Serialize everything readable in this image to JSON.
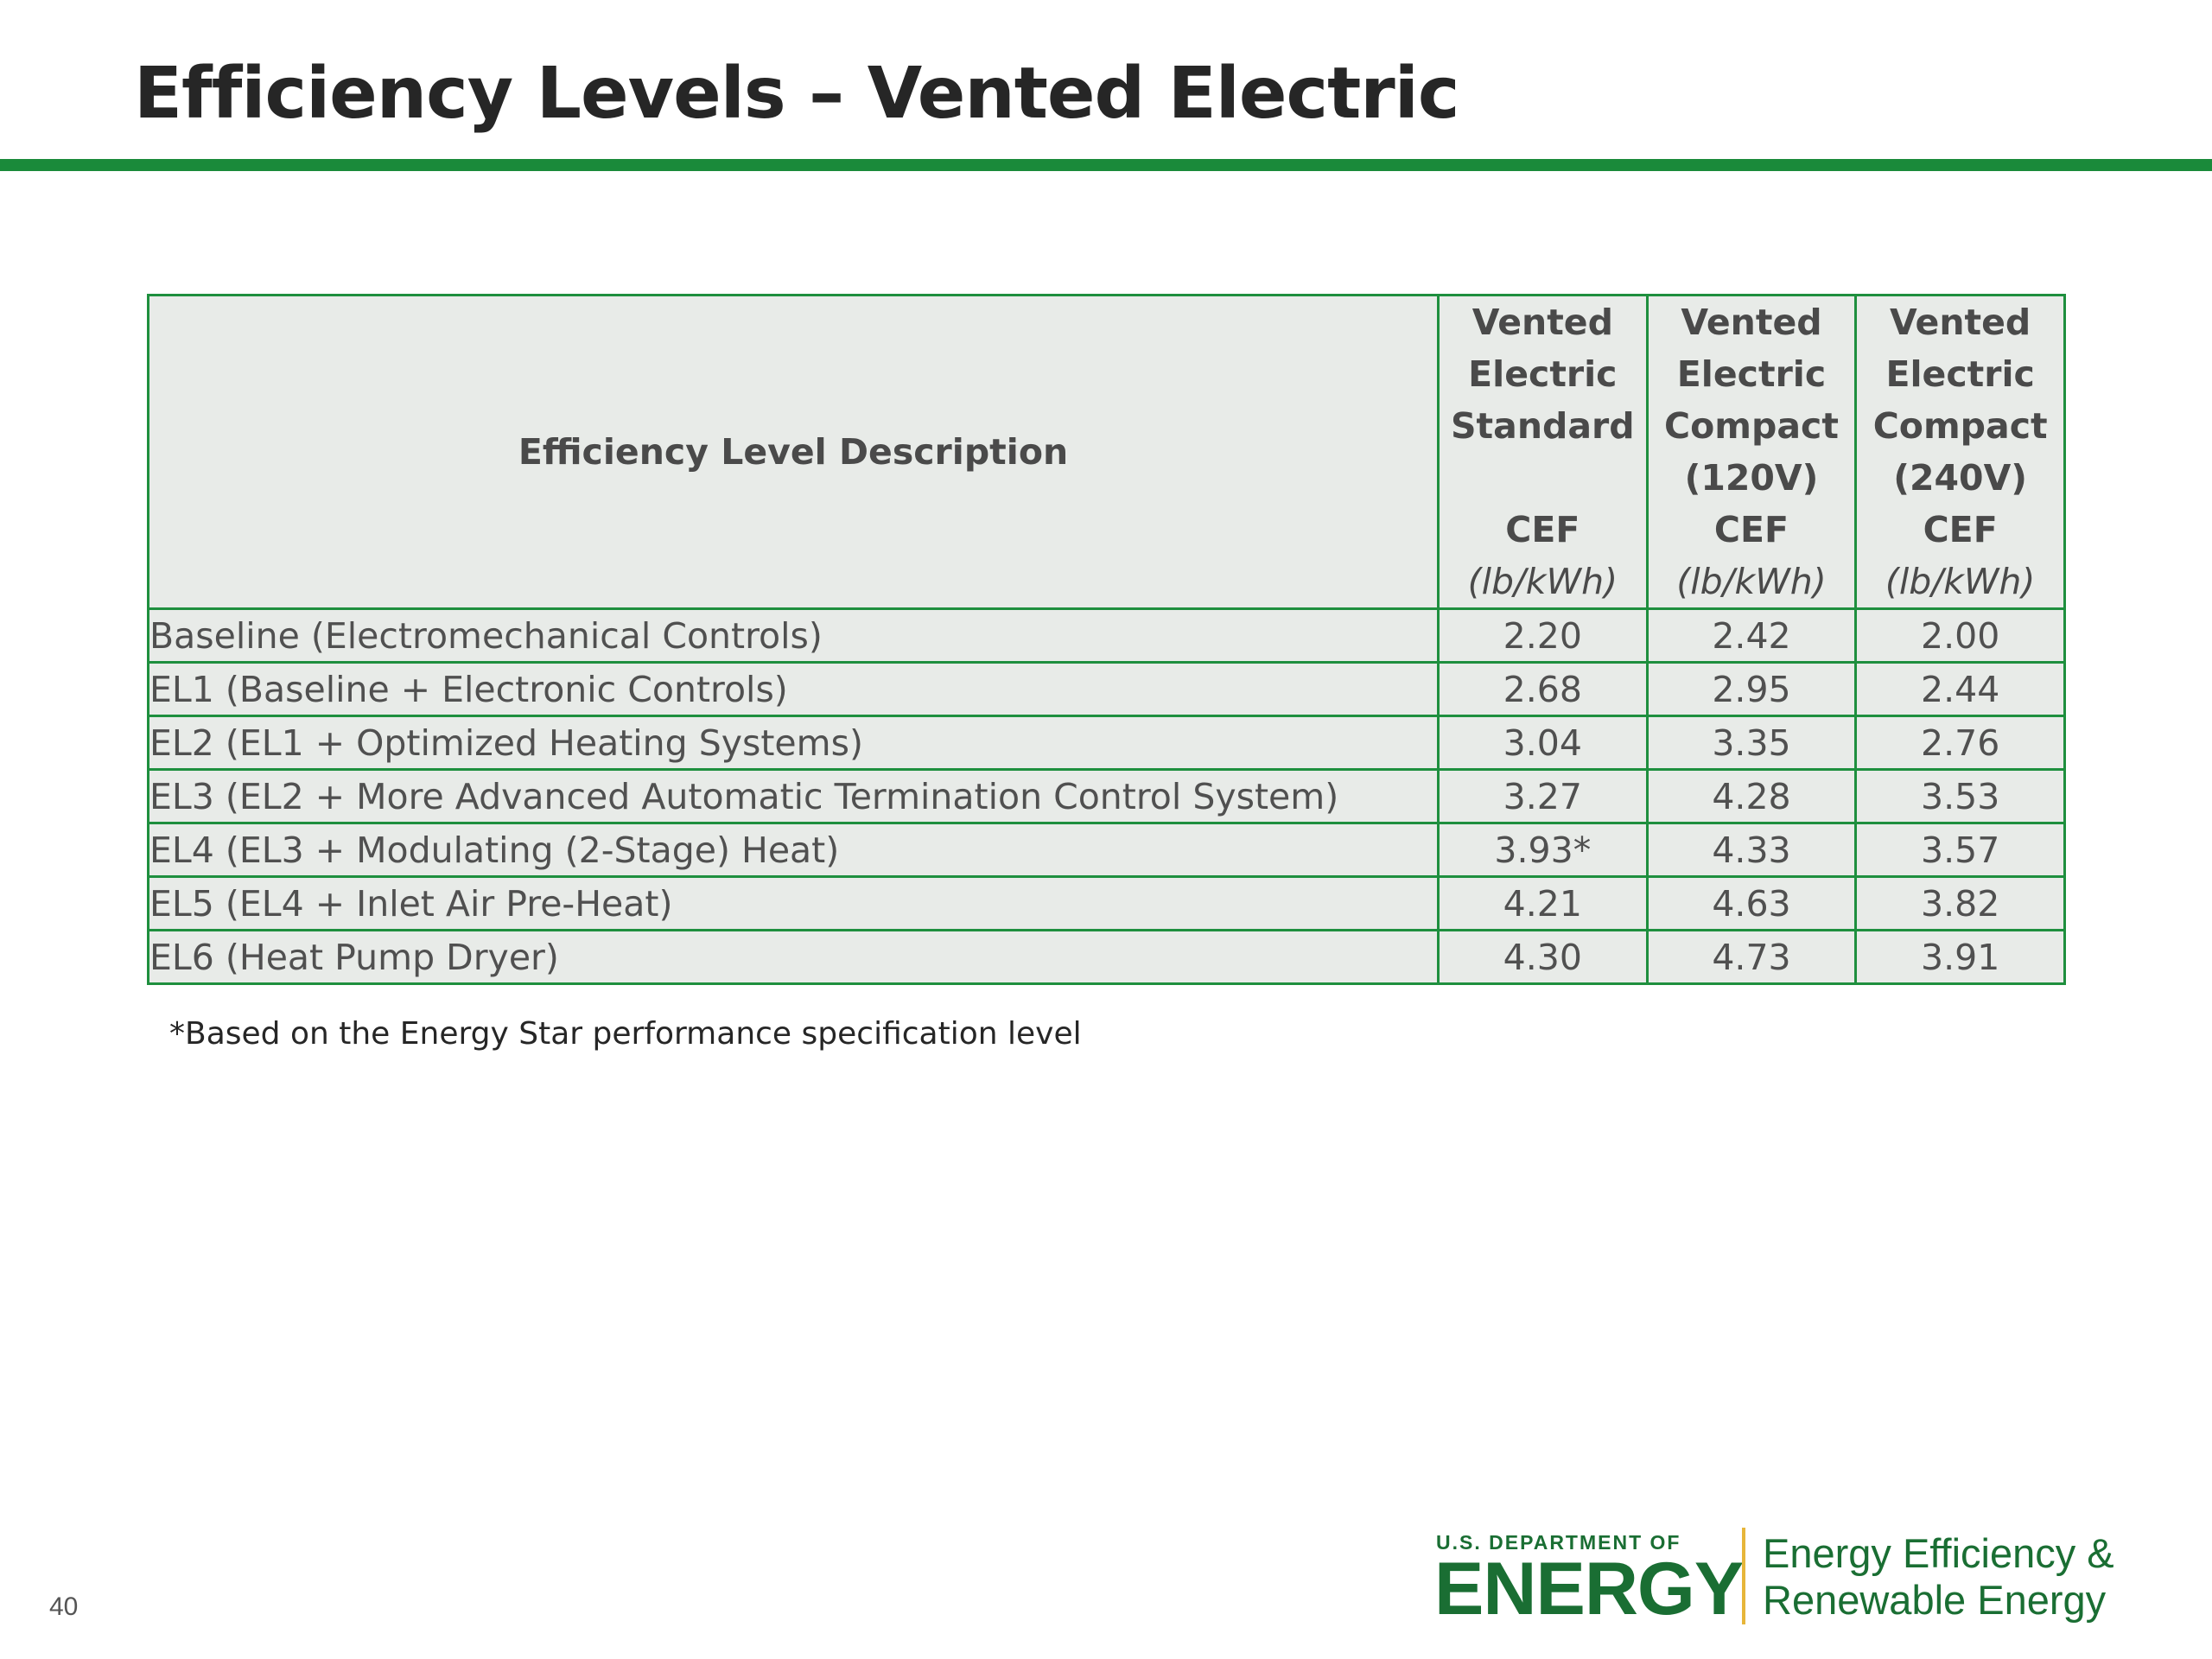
{
  "title": "Efficiency Levels – Vented Electric",
  "table": {
    "header": {
      "description": "Efficiency Level Description",
      "columns": [
        {
          "lines": [
            "Vented",
            "Electric",
            "Standard"
          ],
          "spacer": true,
          "metric": "CEF",
          "unit": "(lb/kWh)"
        },
        {
          "lines": [
            "Vented",
            "Electric",
            "Compact",
            "(120V)"
          ],
          "spacer": false,
          "metric": "CEF",
          "unit": "(lb/kWh)"
        },
        {
          "lines": [
            "Vented",
            "Electric",
            "Compact",
            "(240V)"
          ],
          "spacer": false,
          "metric": "CEF",
          "unit": "(lb/kWh)"
        }
      ]
    },
    "rows": [
      {
        "description": "Baseline (Electromechanical Controls)",
        "values": [
          "2.20",
          "2.42",
          "2.00"
        ]
      },
      {
        "description": "EL1 (Baseline + Electronic Controls)",
        "values": [
          "2.68",
          "2.95",
          "2.44"
        ]
      },
      {
        "description": "EL2 (EL1 + Optimized Heating Systems)",
        "values": [
          "3.04",
          "3.35",
          "2.76"
        ]
      },
      {
        "description": "EL3 (EL2 + More Advanced Automatic Termination Control System)",
        "values": [
          "3.27",
          "4.28",
          "3.53"
        ]
      },
      {
        "description": "EL4 (EL3 + Modulating (2-Stage) Heat)",
        "values": [
          "3.93*",
          "4.33",
          "3.57"
        ]
      },
      {
        "description": "EL5 (EL4 + Inlet Air Pre-Heat)",
        "values": [
          "4.21",
          "4.63",
          "3.82"
        ]
      },
      {
        "description": "EL6 (Heat Pump Dryer)",
        "values": [
          "4.30",
          "4.73",
          "3.91"
        ]
      }
    ]
  },
  "footnote": "*Based on the Energy Star performance specification level",
  "page_number": "40",
  "logo": {
    "agency_line": "U.S. DEPARTMENT OF",
    "agency_name": "ENERGY",
    "office_line_1": "Energy Efficiency &",
    "office_line_2": "Renewable Energy"
  },
  "colors": {
    "accent_green": "#1a8a3a",
    "table_border": "#1e8f3e",
    "table_fill": "#e8ebe8",
    "logo_green": "#1a6e33",
    "logo_divider": "#e7b63a"
  }
}
